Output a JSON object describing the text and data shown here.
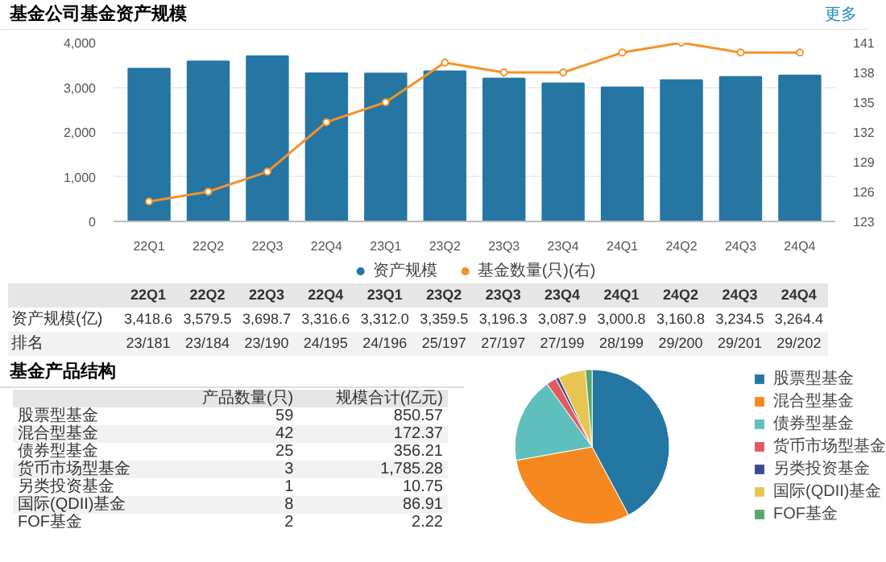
{
  "chart_data": [
    {
      "type": "bar",
      "title": "基金公司基金资产规模",
      "categories": [
        "22Q1",
        "22Q2",
        "22Q3",
        "22Q4",
        "23Q1",
        "23Q2",
        "23Q3",
        "23Q4",
        "24Q1",
        "24Q2",
        "24Q3",
        "24Q4"
      ],
      "series": [
        {
          "name": "资产规模",
          "color": "#2576a3",
          "type": "bar",
          "values": [
            3418.6,
            3579.5,
            3698.7,
            3316.6,
            3312.0,
            3359.5,
            3196.3,
            3087.9,
            3000.8,
            3160.8,
            3234.5,
            3264.4
          ],
          "value_labels": [
            "3,418.6",
            "3,579.5",
            "3,698.7",
            "3,316.6",
            "3,312.0",
            "3,359.5",
            "3,196.3",
            "3,087.9",
            "3,000.8",
            "3,160.8",
            "3,234.5",
            "3,264.4"
          ]
        },
        {
          "name": "基金数量(只)(右)",
          "color": "#f5922a",
          "type": "line",
          "axis": "y2",
          "marker": "circle",
          "values": [
            125,
            126,
            128,
            133,
            135,
            139,
            138,
            138,
            140,
            141,
            140,
            140
          ]
        }
      ],
      "ylim": [
        0,
        4000
      ],
      "yticks": [
        {
          "value": 0,
          "label": "0"
        },
        {
          "value": 1000,
          "label": "1,000"
        },
        {
          "value": 2000,
          "label": "2,000"
        },
        {
          "value": 3000,
          "label": "3,000"
        },
        {
          "value": 4000,
          "label": "4,000"
        }
      ],
      "y2lim": [
        123,
        141
      ],
      "y2ticks": [
        123,
        126,
        129,
        132,
        135,
        138,
        141
      ],
      "grid": "y",
      "legend": "bottom",
      "annotations": [
        "更多",
        "资产规模(亿)",
        "排名",
        "23/181",
        "23/184",
        "23/190",
        "24/195",
        "24/196",
        "25/197",
        "27/197",
        "27/199",
        "28/199",
        "29/200",
        "29/201",
        "29/202"
      ]
    },
    {
      "type": "other",
      "title": "基金产品结构",
      "annotations": [
        "产品数量(只)",
        "规模合计(亿元)",
        "股票型基金",
        "59",
        "850.57",
        "混合型基金",
        "42",
        "172.37",
        "债券型基金",
        "25",
        "356.21",
        "货币市场型基金",
        "3",
        "1,785.28",
        "另类投资基金",
        "1",
        "10.75",
        "国际(QDII)基金",
        "8",
        "86.91",
        "FOF基金",
        "2",
        "2.22"
      ]
    },
    {
      "type": "pie",
      "categories": [
        "股票型基金",
        "混合型基金",
        "债券型基金",
        "货币市场型基金",
        "另类投资基金",
        "国际(QDII)基金",
        "FOF基金"
      ],
      "values": [
        42.2,
        30.0,
        17.9,
        2.1,
        0.7,
        5.7,
        1.4
      ],
      "colors": [
        "#2476a3",
        "#f5891f",
        "#5fbfbd",
        "#e05a5e",
        "#3b4a8f",
        "#e8c553",
        "#5aa56e"
      ],
      "legend": "right"
    }
  ]
}
